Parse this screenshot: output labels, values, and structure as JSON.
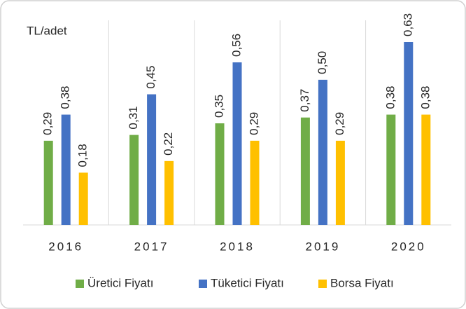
{
  "chart_data": {
    "type": "bar",
    "y_label": "TL/adet",
    "categories": [
      "2016",
      "2017",
      "2018",
      "2019",
      "2020"
    ],
    "series": [
      {
        "name": "Üretici Fiyatı",
        "color": "#70ad47",
        "values": [
          0.29,
          0.31,
          0.35,
          0.37,
          0.38
        ],
        "value_labels": [
          "0,29",
          "0,31",
          "0,35",
          "0,37",
          "0,38"
        ]
      },
      {
        "name": "Tüketici Fiyatı",
        "color": "#4472c4",
        "values": [
          0.38,
          0.45,
          0.56,
          0.5,
          0.63
        ],
        "value_labels": [
          "0,38",
          "0,45",
          "0,56",
          "0,50",
          "0,63"
        ]
      },
      {
        "name": "Borsa Fiyatı",
        "color": "#ffc000",
        "values": [
          0.18,
          0.22,
          0.29,
          0.29,
          0.38
        ],
        "value_labels": [
          "0,18",
          "0,22",
          "0,29",
          "0,29",
          "0,38"
        ]
      }
    ],
    "ylim": [
      0,
      0.7
    ],
    "legend": "bottom"
  }
}
